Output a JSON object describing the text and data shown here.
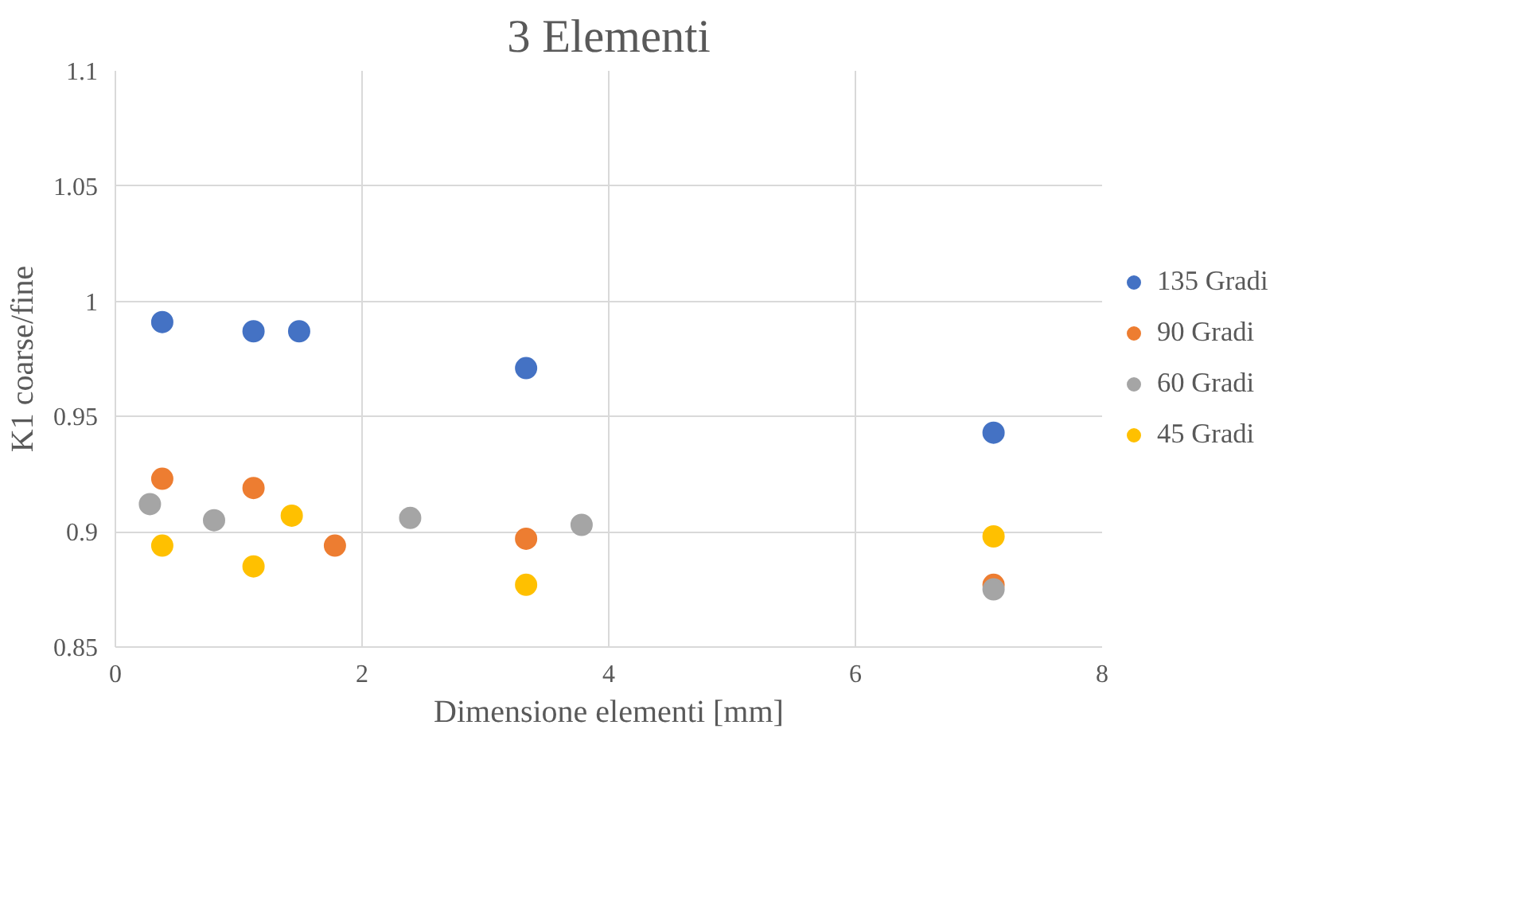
{
  "chart_data": {
    "type": "scatter",
    "title": "3 Elementi",
    "xlabel": "Dimensione elementi [mm]",
    "ylabel": "K1 coarse/fine",
    "xlim": [
      0,
      8
    ],
    "xticks": [
      0,
      2,
      4,
      6,
      8
    ],
    "ylim": [
      0.85,
      1.1
    ],
    "yticks": [
      0.85,
      0.9,
      0.95,
      1,
      1.05,
      1.1
    ],
    "grid": true,
    "legend": "right",
    "marker": "circle",
    "series": [
      {
        "name": "135 Gradi",
        "color": "#4472c4",
        "x": [
          0.38,
          1.12,
          1.49,
          3.33,
          7.12
        ],
        "values": [
          0.991,
          0.987,
          0.987,
          0.971,
          0.943
        ]
      },
      {
        "name": "90 Gradi",
        "color": "#ed7d31",
        "x": [
          0.38,
          1.12,
          1.78,
          3.33,
          7.12
        ],
        "values": [
          0.923,
          0.919,
          0.894,
          0.897,
          0.877
        ]
      },
      {
        "name": "60 Gradi",
        "color": "#a5a5a5",
        "x": [
          0.28,
          0.8,
          2.39,
          3.78,
          7.12
        ],
        "values": [
          0.912,
          0.905,
          0.906,
          0.903,
          0.875
        ]
      },
      {
        "name": "45 Gradi",
        "color": "#ffc000",
        "x": [
          0.38,
          1.12,
          1.43,
          3.33,
          7.12
        ],
        "values": [
          0.894,
          0.885,
          0.907,
          0.877,
          0.898
        ]
      }
    ]
  }
}
